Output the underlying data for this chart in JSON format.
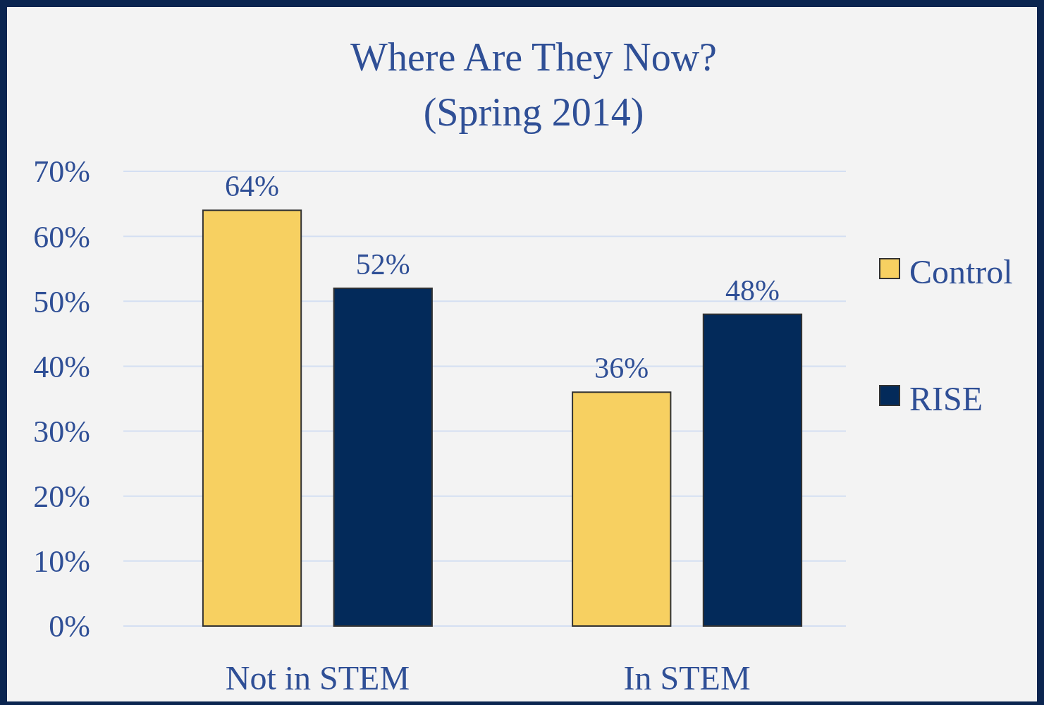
{
  "chart_data": {
    "type": "bar",
    "title": "Where Are They Now?",
    "subtitle": "(Spring 2014)",
    "categories": [
      "Not in STEM",
      "In STEM"
    ],
    "series": [
      {
        "name": "Control",
        "color": "#f7d061",
        "values": [
          64,
          36
        ],
        "value_labels": [
          "64%",
          "36%"
        ]
      },
      {
        "name": "RISE",
        "color": "#032a5a",
        "values": [
          52,
          48
        ],
        "value_labels": [
          "52%",
          "48%"
        ]
      }
    ],
    "ylim": [
      0,
      70
    ],
    "yticks": [
      {
        "value": 0,
        "label": "0%"
      },
      {
        "value": 10,
        "label": "10%"
      },
      {
        "value": 20,
        "label": "20%"
      },
      {
        "value": 30,
        "label": "30%"
      },
      {
        "value": 40,
        "label": "40%"
      },
      {
        "value": 50,
        "label": "50%"
      },
      {
        "value": 60,
        "label": "60%"
      },
      {
        "value": 70,
        "label": "70%"
      }
    ],
    "grid": "y",
    "legend": "right"
  }
}
